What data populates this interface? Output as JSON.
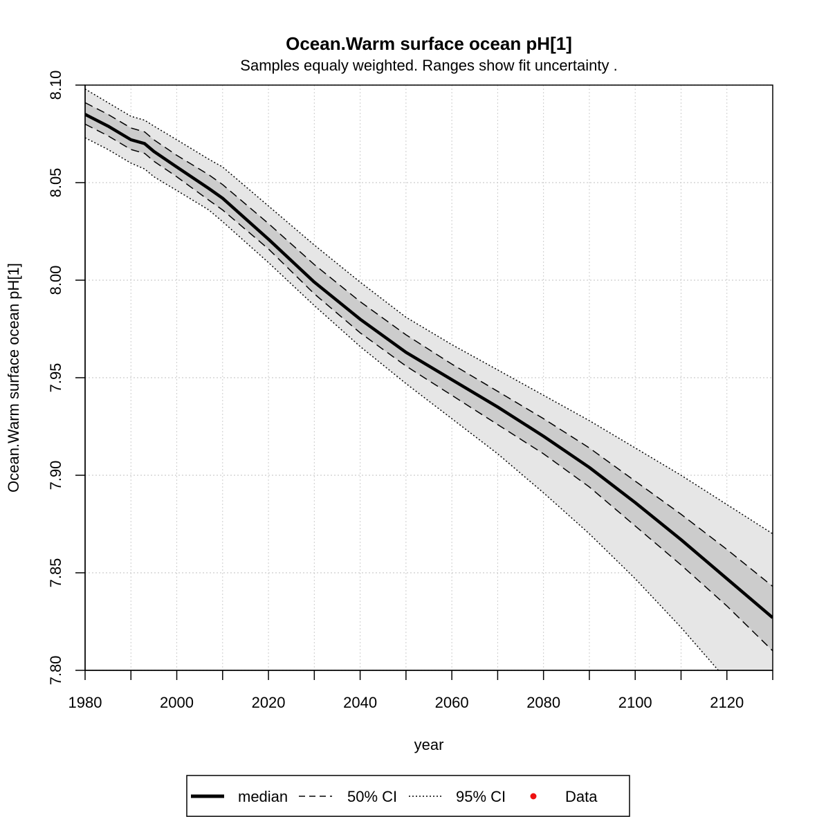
{
  "chart_data": {
    "type": "line",
    "title": "Ocean.Warm surface ocean pH[1]",
    "subtitle": "Samples equaly weighted. Ranges show  fit uncertainty .",
    "xlabel": "year",
    "ylabel": "Ocean.Warm surface ocean pH[1]",
    "xlim": [
      1980,
      2130
    ],
    "ylim": [
      7.8,
      8.1
    ],
    "x_ticks": [
      1980,
      2000,
      2020,
      2040,
      2060,
      2080,
      2100,
      2120
    ],
    "x_tick_labels": [
      "1980",
      "2000",
      "2020",
      "2040",
      "2060",
      "2080",
      "2100",
      "2120"
    ],
    "x_minor_ticks": [
      1990,
      2010,
      2030,
      2050,
      2070,
      2090,
      2110,
      2130
    ],
    "y_ticks": [
      7.8,
      7.85,
      7.9,
      7.95,
      8.0,
      8.05,
      8.1
    ],
    "y_tick_labels": [
      "7.80",
      "7.85",
      "7.90",
      "7.95",
      "8.00",
      "8.05",
      "8.10"
    ],
    "grid": true,
    "legend_position": "bottom",
    "x": [
      1980,
      1985,
      1990,
      1993,
      1995,
      2000,
      2007,
      2010,
      2020,
      2030,
      2040,
      2050,
      2060,
      2070,
      2080,
      2090,
      2100,
      2110,
      2120,
      2130
    ],
    "series": [
      {
        "name": "median",
        "values": [
          8.085,
          8.079,
          8.072,
          8.07,
          8.066,
          8.058,
          8.047,
          8.042,
          8.021,
          7.999,
          7.98,
          7.963,
          7.949,
          7.935,
          7.92,
          7.904,
          7.886,
          7.867,
          7.847,
          7.827
        ]
      },
      {
        "name": "50% CI",
        "role": "upper",
        "values": [
          8.091,
          8.085,
          8.078,
          8.076,
          8.072,
          8.064,
          8.054,
          8.049,
          8.029,
          8.008,
          7.989,
          7.972,
          7.957,
          7.943,
          7.929,
          7.914,
          7.897,
          7.88,
          7.862,
          7.843
        ]
      },
      {
        "name": "50% CI",
        "role": "lower",
        "values": [
          8.08,
          8.074,
          8.067,
          8.065,
          8.061,
          8.053,
          8.041,
          8.036,
          8.016,
          7.993,
          7.973,
          7.956,
          7.941,
          7.926,
          7.911,
          7.894,
          7.874,
          7.854,
          7.833,
          7.81
        ]
      },
      {
        "name": "95% CI",
        "role": "upper",
        "values": [
          8.098,
          8.091,
          8.084,
          8.082,
          8.079,
          8.072,
          8.062,
          8.058,
          8.038,
          8.018,
          7.999,
          7.981,
          7.967,
          7.954,
          7.941,
          7.928,
          7.914,
          7.9,
          7.885,
          7.87
        ]
      },
      {
        "name": "95% CI",
        "role": "lower",
        "values": [
          8.073,
          8.067,
          8.06,
          8.057,
          8.053,
          8.046,
          8.036,
          8.03,
          8.009,
          7.987,
          7.966,
          7.947,
          7.929,
          7.911,
          7.891,
          7.87,
          7.847,
          7.822,
          7.795,
          7.765
        ]
      }
    ],
    "data_points": [],
    "colors": {
      "band95": "#e6e6e6",
      "band50": "#cccccc",
      "median": "#000000",
      "data": "#ee1111",
      "grid": "#cccccc"
    }
  },
  "legend": {
    "items": [
      {
        "label": "median",
        "style": "solid"
      },
      {
        "label": "50% CI",
        "style": "dashed"
      },
      {
        "label": "95% CI",
        "style": "dotted"
      },
      {
        "label": "Data",
        "style": "point"
      }
    ]
  }
}
